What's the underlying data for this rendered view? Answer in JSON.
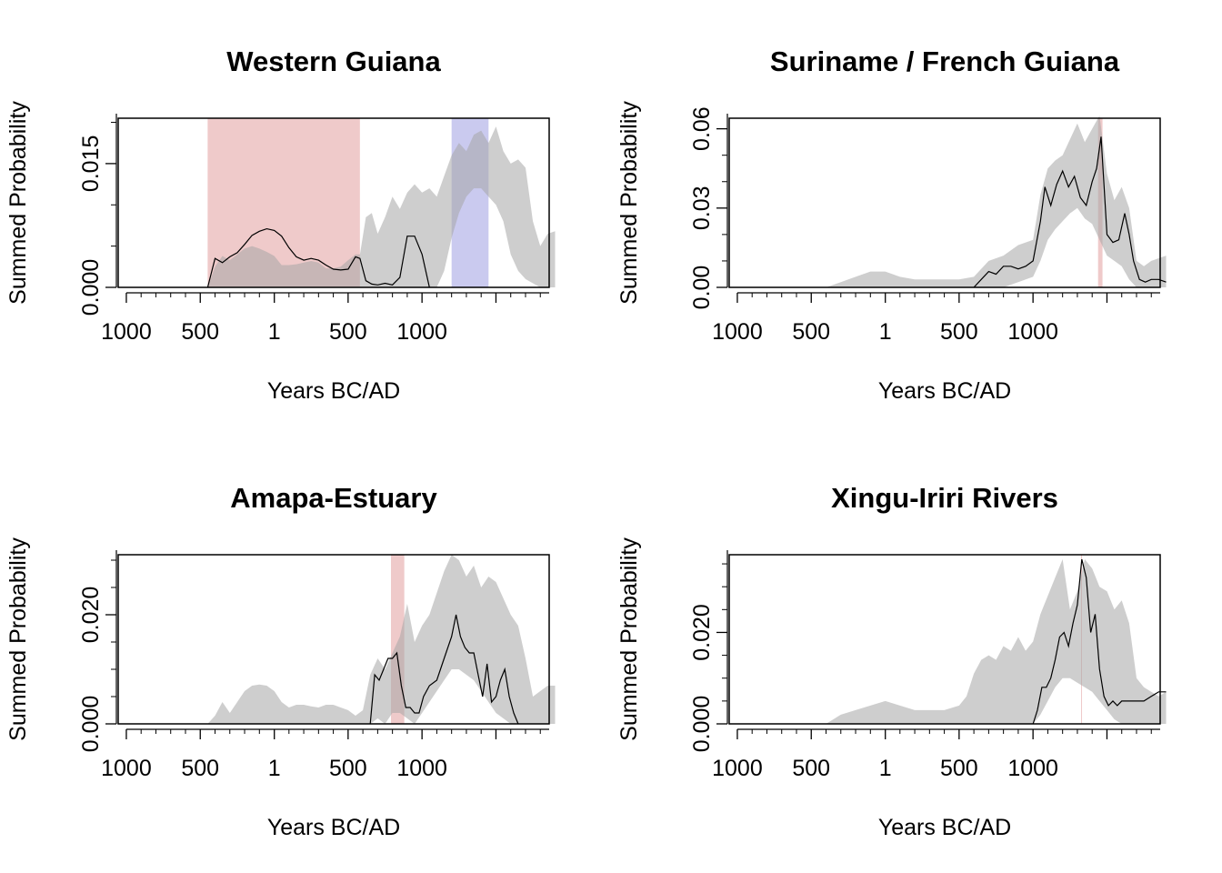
{
  "chart_data": [
    {
      "type": "area",
      "title": "Western Guiana",
      "xlabel": "Years BC/AD",
      "ylabel": "Summed Probability",
      "x_tick_labels": [
        "1000",
        "500",
        "1",
        "500",
        "1000"
      ],
      "y_tick_labels": [
        "0.000",
        "0.015"
      ],
      "ylim": [
        0,
        0.0205
      ],
      "x_axis_note": "BC/AD calendar years; tick values 1000 BC, 500 BC, 1 AD, 500 AD, 1000 AD",
      "shaded_periods": [
        {
          "from": -450,
          "to": 580,
          "color": "#e8b4b4"
        },
        {
          "from": 1200,
          "to": 1450,
          "color": "#b4b4e8"
        }
      ],
      "envelope": {
        "x": [
          -450,
          -400,
          -350,
          -300,
          -250,
          -200,
          -150,
          -100,
          -50,
          1,
          50,
          100,
          150,
          200,
          250,
          300,
          350,
          400,
          450,
          500,
          550,
          580,
          620,
          660,
          700,
          750,
          800,
          850,
          900,
          950,
          1000,
          1050,
          1100,
          1150,
          1200,
          1250,
          1300,
          1350,
          1400,
          1450,
          1500,
          1550,
          1600,
          1650,
          1700,
          1750,
          1800,
          1850,
          1900
        ],
        "upper": [
          0,
          0.0025,
          0.0038,
          0.0033,
          0.004,
          0.0047,
          0.005,
          0.0047,
          0.0043,
          0.0038,
          0.0027,
          0.0027,
          0.0028,
          0.003,
          0.0032,
          0.003,
          0.0023,
          0.0023,
          0.0025,
          0.0033,
          0.004,
          0.004,
          0.0085,
          0.009,
          0.0065,
          0.0085,
          0.011,
          0.0095,
          0.0115,
          0.0125,
          0.0115,
          0.012,
          0.011,
          0.0135,
          0.016,
          0.0175,
          0.0165,
          0.0185,
          0.019,
          0.0175,
          0.0195,
          0.0165,
          0.015,
          0.0155,
          0.0145,
          0.008,
          0.005,
          0.0065,
          0.0068
        ],
        "lower": [
          0,
          0,
          0,
          0,
          0,
          0,
          0,
          0,
          0,
          0,
          0,
          0,
          0,
          0,
          0,
          0,
          0,
          0,
          0,
          0,
          0,
          0,
          0,
          0,
          0,
          0,
          0,
          0,
          0,
          0,
          0,
          0,
          0,
          0.002,
          0.006,
          0.009,
          0.011,
          0.012,
          0.012,
          0.011,
          0.01,
          0.008,
          0.004,
          0.002,
          0.001,
          0.0005,
          0,
          0,
          0
        ]
      },
      "series": [
        {
          "x": [
            -450,
            -400,
            -350,
            -300,
            -250,
            -200,
            -150,
            -100,
            -50,
            1,
            50,
            100,
            150,
            200,
            250,
            300,
            350,
            400,
            450,
            500,
            550,
            580,
            620,
            660,
            700,
            750,
            800,
            850,
            900,
            950,
            1000,
            1050
          ],
          "values": [
            0,
            0.0035,
            0.003,
            0.0037,
            0.0042,
            0.0052,
            0.0063,
            0.0068,
            0.0071,
            0.0069,
            0.0062,
            0.0048,
            0.0037,
            0.0033,
            0.0035,
            0.0033,
            0.0027,
            0.0022,
            0.0021,
            0.0022,
            0.0037,
            0.0035,
            0.0008,
            0.0004,
            0.0003,
            0.0005,
            0.0003,
            0.0012,
            0.0062,
            0.0062,
            0.004,
            0
          ]
        }
      ]
    },
    {
      "type": "area",
      "title": "Suriname / French Guiana",
      "xlabel": "Years BC/AD",
      "ylabel": "Summed Probability",
      "x_tick_labels": [
        "1000",
        "500",
        "1",
        "500",
        "1000"
      ],
      "y_tick_labels": [
        "0.00",
        "0.03",
        "0.06"
      ],
      "ylim": [
        0,
        0.064
      ],
      "shaded_periods": [
        {
          "from": 1440,
          "to": 1470,
          "color": "#e8b4b4"
        }
      ],
      "envelope": {
        "x": [
          -400,
          -300,
          -200,
          -100,
          1,
          100,
          200,
          300,
          400,
          500,
          600,
          700,
          800,
          900,
          1000,
          1050,
          1100,
          1150,
          1200,
          1250,
          1300,
          1350,
          1400,
          1450,
          1500,
          1550,
          1600,
          1650,
          1700,
          1750,
          1800,
          1850,
          1900
        ],
        "upper": [
          0,
          0.002,
          0.004,
          0.006,
          0.006,
          0.004,
          0.003,
          0.003,
          0.003,
          0.003,
          0.004,
          0.01,
          0.012,
          0.016,
          0.018,
          0.035,
          0.045,
          0.048,
          0.05,
          0.056,
          0.062,
          0.055,
          0.06,
          0.065,
          0.043,
          0.033,
          0.038,
          0.03,
          0.01,
          0.008,
          0.01,
          0.011,
          0.012
        ],
        "lower": [
          0,
          0,
          0,
          0,
          0,
          0,
          0,
          0,
          0,
          0,
          0,
          0,
          0,
          0.002,
          0.004,
          0.01,
          0.018,
          0.022,
          0.025,
          0.028,
          0.03,
          0.026,
          0.024,
          0.018,
          0.012,
          0.01,
          0.008,
          0.003,
          0,
          0,
          0,
          0,
          0
        ]
      },
      "series": [
        {
          "x": [
            600,
            650,
            700,
            750,
            800,
            850,
            900,
            950,
            1000,
            1050,
            1080,
            1120,
            1160,
            1200,
            1240,
            1280,
            1320,
            1360,
            1400,
            1430,
            1460,
            1500,
            1540,
            1580,
            1620,
            1650,
            1680,
            1720,
            1760,
            1800,
            1850,
            1900
          ],
          "values": [
            0,
            0.003,
            0.006,
            0.005,
            0.008,
            0.008,
            0.007,
            0.008,
            0.01,
            0.025,
            0.038,
            0.031,
            0.039,
            0.044,
            0.038,
            0.042,
            0.034,
            0.031,
            0.04,
            0.045,
            0.057,
            0.02,
            0.017,
            0.018,
            0.028,
            0.02,
            0.01,
            0.003,
            0.002,
            0.003,
            0.003,
            0.002
          ]
        }
      ]
    },
    {
      "type": "area",
      "title": "Amapa-Estuary",
      "xlabel": "Years BC/AD",
      "ylabel": "Summed Probability",
      "x_tick_labels": [
        "1000",
        "500",
        "1",
        "500",
        "1000"
      ],
      "y_tick_labels": [
        "0.000",
        "0.020"
      ],
      "ylim": [
        0,
        0.031
      ],
      "shaded_periods": [
        {
          "from": 790,
          "to": 880,
          "color": "#e8b4b4"
        }
      ],
      "envelope": {
        "x": [
          -450,
          -400,
          -350,
          -300,
          -250,
          -200,
          -150,
          -100,
          -50,
          1,
          50,
          100,
          150,
          200,
          250,
          300,
          350,
          400,
          450,
          500,
          550,
          600,
          650,
          700,
          750,
          800,
          850,
          900,
          950,
          1000,
          1050,
          1100,
          1150,
          1200,
          1250,
          1300,
          1350,
          1400,
          1450,
          1500,
          1550,
          1600,
          1650,
          1700,
          1750,
          1800,
          1850,
          1900
        ],
        "upper": [
          0,
          0.0015,
          0.004,
          0.002,
          0.004,
          0.006,
          0.007,
          0.0072,
          0.007,
          0.006,
          0.004,
          0.003,
          0.0035,
          0.0035,
          0.0032,
          0.003,
          0.0035,
          0.0035,
          0.003,
          0.0025,
          0.0015,
          0.0025,
          0.009,
          0.012,
          0.01,
          0.013,
          0.016,
          0.022,
          0.015,
          0.018,
          0.02,
          0.024,
          0.028,
          0.031,
          0.03,
          0.027,
          0.029,
          0.025,
          0.027,
          0.026,
          0.023,
          0.02,
          0.018,
          0.012,
          0.005,
          0.006,
          0.007,
          0.007
        ],
        "lower": [
          0,
          0,
          0,
          0,
          0,
          0,
          0,
          0,
          0,
          0,
          0,
          0,
          0,
          0,
          0,
          0,
          0,
          0,
          0,
          0,
          0,
          0,
          0,
          0.001,
          0,
          0.002,
          0.002,
          0.001,
          0,
          0.002,
          0.004,
          0.006,
          0.008,
          0.01,
          0.01,
          0.009,
          0.008,
          0.006,
          0.004,
          0.002,
          0.001,
          0,
          0,
          0,
          0,
          0,
          0,
          0
        ]
      },
      "series": [
        {
          "x": [
            650,
            680,
            710,
            740,
            770,
            800,
            830,
            860,
            890,
            920,
            950,
            980,
            1010,
            1050,
            1100,
            1150,
            1200,
            1230,
            1260,
            1290,
            1320,
            1350,
            1380,
            1410,
            1440,
            1470,
            1500,
            1530,
            1560,
            1590,
            1620,
            1650
          ],
          "values": [
            0,
            0.009,
            0.008,
            0.01,
            0.012,
            0.012,
            0.013,
            0.007,
            0.003,
            0.003,
            0.002,
            0.002,
            0.005,
            0.007,
            0.008,
            0.012,
            0.016,
            0.02,
            0.016,
            0.014,
            0.013,
            0.013,
            0.009,
            0.005,
            0.011,
            0.004,
            0.005,
            0.008,
            0.01,
            0.005,
            0.002,
            0
          ]
        }
      ]
    },
    {
      "type": "area",
      "title": "Xingu-Iriri Rivers",
      "xlabel": "Years BC/AD",
      "ylabel": "Summed Probability",
      "x_tick_labels": [
        "1000",
        "500",
        "1",
        "500",
        "1000"
      ],
      "y_tick_labels": [
        "0.000",
        "0.020"
      ],
      "ylim": [
        0,
        0.037
      ],
      "shaded_periods": [
        {
          "from": 1325,
          "to": 1330,
          "color": "#e8b4b4"
        }
      ],
      "envelope": {
        "x": [
          -400,
          -300,
          -200,
          -100,
          1,
          100,
          200,
          300,
          400,
          500,
          550,
          600,
          650,
          700,
          750,
          800,
          850,
          900,
          950,
          1000,
          1050,
          1100,
          1150,
          1200,
          1250,
          1300,
          1350,
          1400,
          1450,
          1500,
          1550,
          1600,
          1650,
          1700,
          1750,
          1800,
          1850,
          1900
        ],
        "upper": [
          0,
          0.002,
          0.003,
          0.004,
          0.005,
          0.004,
          0.003,
          0.003,
          0.003,
          0.004,
          0.006,
          0.011,
          0.014,
          0.015,
          0.014,
          0.017,
          0.016,
          0.019,
          0.016,
          0.018,
          0.024,
          0.028,
          0.032,
          0.036,
          0.025,
          0.029,
          0.036,
          0.034,
          0.03,
          0.029,
          0.025,
          0.027,
          0.022,
          0.01,
          0.008,
          0.007,
          0.006,
          0.007
        ],
        "lower": [
          0,
          0,
          0,
          0,
          0,
          0,
          0,
          0,
          0,
          0,
          0,
          0,
          0,
          0,
          0,
          0,
          0,
          0,
          0,
          0,
          0.002,
          0.005,
          0.008,
          0.01,
          0.01,
          0.009,
          0.008,
          0.007,
          0.005,
          0.003,
          0.001,
          0,
          0,
          0,
          0,
          0,
          0,
          0
        ]
      },
      "series": [
        {
          "x": [
            1000,
            1030,
            1060,
            1090,
            1120,
            1150,
            1180,
            1210,
            1240,
            1270,
            1300,
            1330,
            1360,
            1390,
            1420,
            1450,
            1480,
            1510,
            1540,
            1570,
            1600,
            1650,
            1700,
            1750,
            1800,
            1850,
            1900
          ],
          "values": [
            0,
            0.003,
            0.008,
            0.008,
            0.01,
            0.014,
            0.019,
            0.02,
            0.017,
            0.022,
            0.026,
            0.036,
            0.032,
            0.02,
            0.024,
            0.012,
            0.006,
            0.004,
            0.005,
            0.004,
            0.005,
            0.005,
            0.005,
            0.005,
            0.006,
            0.007,
            0.007
          ]
        }
      ]
    }
  ]
}
